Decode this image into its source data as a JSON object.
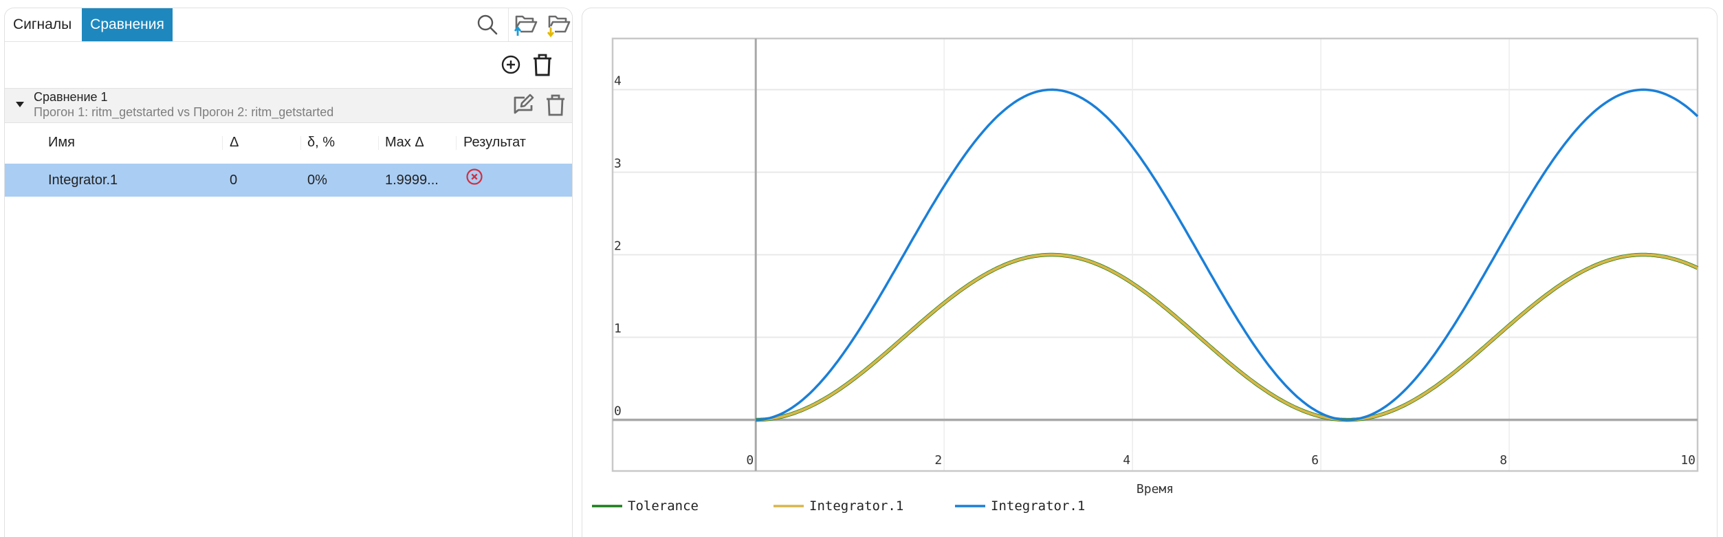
{
  "left_panel": {
    "tabs": [
      {
        "label": "Сигналы",
        "active": false
      },
      {
        "label": "Сравнения",
        "active": true
      }
    ],
    "toolbar_icons": [
      "search-icon",
      "folder-upload-icon",
      "folder-download-icon"
    ],
    "action_icons": [
      "add-circle-icon",
      "delete-all-icon"
    ],
    "comparison_group": {
      "title": "Сравнение 1",
      "subtitle": "Прогон 1: ritm_getstarted vs Прогон 2: ritm_getstarted",
      "expanded": true,
      "icons": [
        "edit-icon",
        "delete-icon"
      ]
    },
    "table": {
      "columns": [
        "Имя",
        "Δ",
        "δ, %",
        "Max Δ",
        "Результат"
      ],
      "rows": [
        {
          "name": "Integrator.1",
          "delta": "0",
          "delta_pct": "0%",
          "max_delta": "1.9999...",
          "result": "fail",
          "selected": true
        }
      ]
    }
  },
  "colors": {
    "active_tab": "#1e88be",
    "selected_row": "#aacdf3",
    "fail_icon": "#d32f3f",
    "upload_arrow": "#1a9ad6",
    "download_arrow": "#e3b800",
    "tolerance": "#1a7f1a",
    "integrator_run1": "#d9b54a",
    "integrator_run2": "#1a7fd8"
  },
  "chart_data": {
    "type": "line",
    "title": "",
    "xlabel": "Время",
    "ylabel": "",
    "xlim": [
      -1.52,
      10.0
    ],
    "ylim": [
      -0.62,
      4.62
    ],
    "x_ticks": [
      "0",
      "2",
      "4",
      "6",
      "8",
      "10"
    ],
    "y_ticks": [
      "0",
      "1",
      "2",
      "3",
      "4"
    ],
    "grid": true,
    "legend_position": "bottom",
    "x": [
      0,
      0.5,
      1,
      1.5,
      2,
      2.5,
      3,
      3.14,
      3.5,
      4,
      4.5,
      5,
      5.5,
      6,
      6.28,
      6.5,
      7,
      7.5,
      8,
      8.5,
      9,
      9.42,
      10
    ],
    "series": [
      {
        "name": "Tolerance",
        "color": "#1a7f1a",
        "values": [
          0,
          0.12,
          0.46,
          0.93,
          1.42,
          1.8,
          1.99,
          2.0,
          1.94,
          1.65,
          1.21,
          0.72,
          0.29,
          0.04,
          0,
          0.02,
          0.25,
          0.65,
          1.15,
          1.6,
          1.91,
          2.0,
          1.84
        ]
      },
      {
        "name": "Integrator.1",
        "color": "#d9b54a",
        "values": [
          0,
          0.12,
          0.46,
          0.93,
          1.42,
          1.8,
          1.99,
          2.0,
          1.94,
          1.65,
          1.21,
          0.72,
          0.29,
          0.04,
          0,
          0.02,
          0.25,
          0.65,
          1.15,
          1.6,
          1.91,
          2.0,
          1.84
        ]
      },
      {
        "name": "Integrator.1",
        "color": "#1a7fd8",
        "values": [
          0,
          0.24,
          0.92,
          1.86,
          2.83,
          3.6,
          3.98,
          4.0,
          3.87,
          3.31,
          2.42,
          1.43,
          0.58,
          0.08,
          0,
          0.05,
          0.49,
          1.31,
          2.29,
          3.2,
          3.82,
          4.0,
          3.68
        ]
      }
    ]
  }
}
